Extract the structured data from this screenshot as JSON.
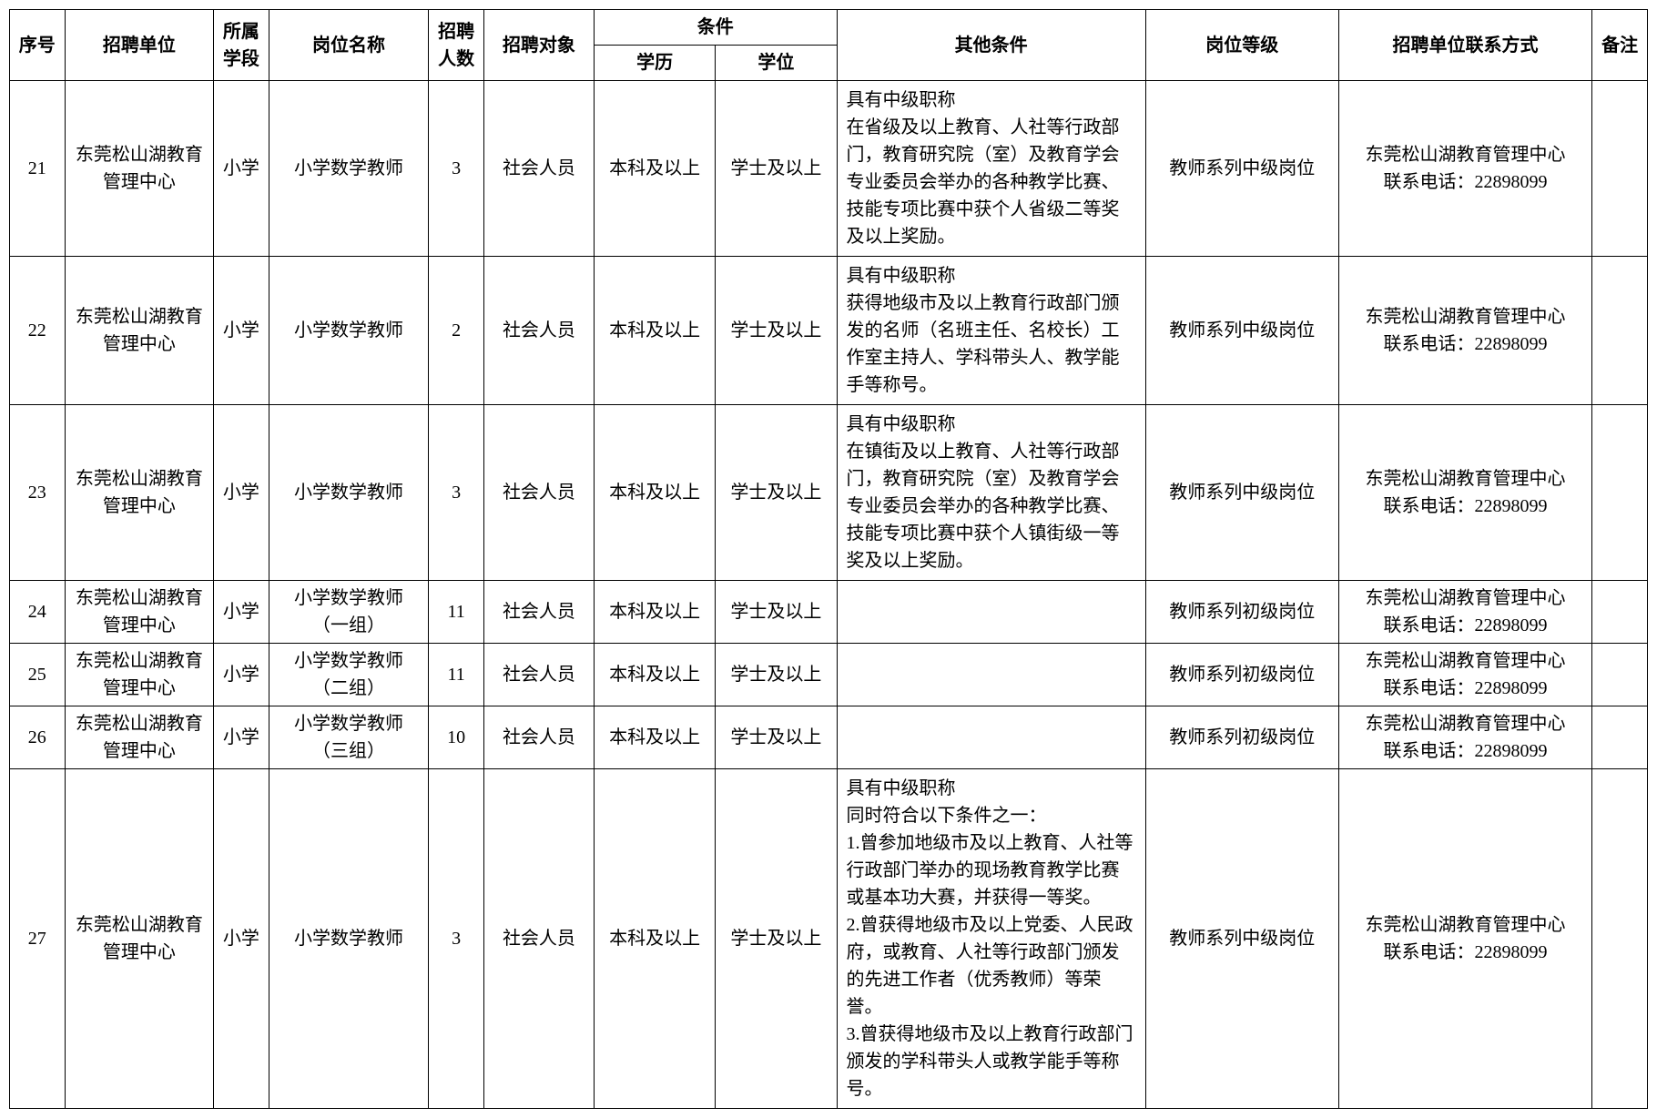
{
  "headers": {
    "seq": "序号",
    "unit": "招聘单位",
    "stage": "所属\n学段",
    "pos": "岗位名称",
    "num": "招聘\n人数",
    "target": "招聘对象",
    "cond": "条件",
    "edu": "学历",
    "deg": "学位",
    "other": "其他条件",
    "level": "岗位等级",
    "contact": "招聘单位联系方式",
    "note": "备注"
  },
  "rows": [
    {
      "seq": "21",
      "unit": "东莞松山湖教育管理中心",
      "stage": "小学",
      "pos": "小学数学教师",
      "num": "3",
      "target": "社会人员",
      "edu": "本科及以上",
      "deg": "学士及以上",
      "other": "具有中级职称\n在省级及以上教育、人社等行政部门，教育研究院（室）及教育学会专业委员会举办的各种教学比赛、技能专项比赛中获个人省级二等奖及以上奖励。",
      "level": "教师系列中级岗位",
      "contact": "东莞松山湖教育管理中心\n联系电话：22898099",
      "note": ""
    },
    {
      "seq": "22",
      "unit": "东莞松山湖教育管理中心",
      "stage": "小学",
      "pos": "小学数学教师",
      "num": "2",
      "target": "社会人员",
      "edu": "本科及以上",
      "deg": "学士及以上",
      "other": "具有中级职称\n获得地级市及以上教育行政部门颁发的名师（名班主任、名校长）工作室主持人、学科带头人、教学能手等称号。",
      "level": "教师系列中级岗位",
      "contact": "东莞松山湖教育管理中心\n联系电话：22898099",
      "note": ""
    },
    {
      "seq": "23",
      "unit": "东莞松山湖教育管理中心",
      "stage": "小学",
      "pos": "小学数学教师",
      "num": "3",
      "target": "社会人员",
      "edu": "本科及以上",
      "deg": "学士及以上",
      "other": "具有中级职称\n在镇街及以上教育、人社等行政部门，教育研究院（室）及教育学会专业委员会举办的各种教学比赛、技能专项比赛中获个人镇街级一等奖及以上奖励。",
      "level": "教师系列中级岗位",
      "contact": "东莞松山湖教育管理中心\n联系电话：22898099",
      "note": ""
    },
    {
      "seq": "24",
      "unit": "东莞松山湖教育管理中心",
      "stage": "小学",
      "pos": "小学数学教师\n（一组）",
      "num": "11",
      "target": "社会人员",
      "edu": "本科及以上",
      "deg": "学士及以上",
      "other": "",
      "level": "教师系列初级岗位",
      "contact": "东莞松山湖教育管理中心\n联系电话：22898099",
      "note": ""
    },
    {
      "seq": "25",
      "unit": "东莞松山湖教育管理中心",
      "stage": "小学",
      "pos": "小学数学教师\n（二组）",
      "num": "11",
      "target": "社会人员",
      "edu": "本科及以上",
      "deg": "学士及以上",
      "other": "",
      "level": "教师系列初级岗位",
      "contact": "东莞松山湖教育管理中心\n联系电话：22898099",
      "note": ""
    },
    {
      "seq": "26",
      "unit": "东莞松山湖教育管理中心",
      "stage": "小学",
      "pos": "小学数学教师\n（三组）",
      "num": "10",
      "target": "社会人员",
      "edu": "本科及以上",
      "deg": "学士及以上",
      "other": "",
      "level": "教师系列初级岗位",
      "contact": "东莞松山湖教育管理中心\n联系电话：22898099",
      "note": ""
    },
    {
      "seq": "27",
      "unit": "东莞松山湖教育管理中心",
      "stage": "小学",
      "pos": "小学数学教师",
      "num": "3",
      "target": "社会人员",
      "edu": "本科及以上",
      "deg": "学士及以上",
      "other": "具有中级职称\n同时符合以下条件之一：\n1.曾参加地级市及以上教育、人社等行政部门举办的现场教育教学比赛或基本功大赛，并获得一等奖。\n2.曾获得地级市及以上党委、人民政府，或教育、人社等行政部门颁发的先进工作者（优秀教师）等荣誉。\n3.曾获得地级市及以上教育行政部门颁发的学科带头人或教学能手等称号。",
      "level": "教师系列中级岗位",
      "contact": "东莞松山湖教育管理中心\n联系电话：22898099",
      "note": ""
    }
  ]
}
